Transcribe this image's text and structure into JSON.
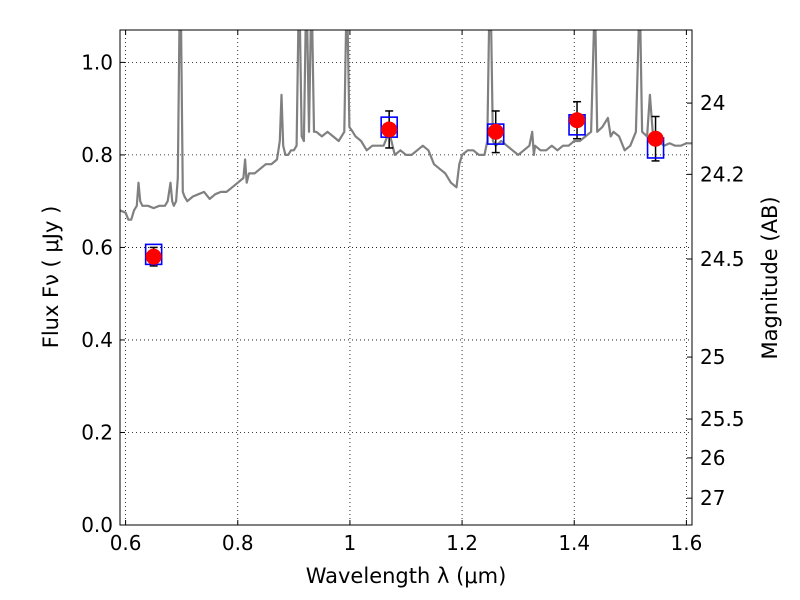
{
  "chart_data": {
    "type": "scatter",
    "xlabel": "Wavelength  λ (μm)",
    "ylabel_left": "Flux  Fν  ( μJy )",
    "ylabel_right": "Magnitude (AB)",
    "xlim": [
      0.59,
      1.61
    ],
    "ylim": [
      0.0,
      1.07
    ],
    "grid": true,
    "xticks": [
      {
        "value": 0.6,
        "label": "0.6"
      },
      {
        "value": 0.8,
        "label": "0.8"
      },
      {
        "value": 1.0,
        "label": "1"
      },
      {
        "value": 1.2,
        "label": "1.2"
      },
      {
        "value": 1.4,
        "label": "1.4"
      },
      {
        "value": 1.6,
        "label": "1.6"
      }
    ],
    "yticks": [
      {
        "value": 0.0,
        "label": "0.0"
      },
      {
        "value": 0.2,
        "label": "0.2"
      },
      {
        "value": 0.4,
        "label": "0.4"
      },
      {
        "value": 0.6,
        "label": "0.6"
      },
      {
        "value": 0.8,
        "label": "0.8"
      },
      {
        "value": 1.0,
        "label": "1.0"
      }
    ],
    "right_ticks": [
      {
        "flux": 0.912,
        "label": "24"
      },
      {
        "flux": 0.758,
        "label": "24.2"
      },
      {
        "flux": 0.575,
        "label": "24.5"
      },
      {
        "flux": 0.363,
        "label": "25"
      },
      {
        "flux": 0.229,
        "label": "25.5"
      },
      {
        "flux": 0.145,
        "label": "26"
      },
      {
        "flux": 0.058,
        "label": "27"
      }
    ],
    "series": [
      {
        "kind": "spectrum-line",
        "color": "#808080",
        "points": [
          [
            0.59,
            0.68
          ],
          [
            0.6,
            0.675
          ],
          [
            0.605,
            0.66
          ],
          [
            0.61,
            0.66
          ],
          [
            0.615,
            0.68
          ],
          [
            0.62,
            0.69
          ],
          [
            0.623,
            0.74
          ],
          [
            0.626,
            0.7
          ],
          [
            0.63,
            0.69
          ],
          [
            0.64,
            0.69
          ],
          [
            0.65,
            0.685
          ],
          [
            0.66,
            0.69
          ],
          [
            0.67,
            0.69
          ],
          [
            0.675,
            0.7
          ],
          [
            0.68,
            0.74
          ],
          [
            0.683,
            0.7
          ],
          [
            0.686,
            0.69
          ],
          [
            0.69,
            0.7
          ],
          [
            0.693,
            0.75
          ],
          [
            0.696,
            1.07
          ],
          [
            0.699,
            1.07
          ],
          [
            0.702,
            0.72
          ],
          [
            0.705,
            0.71
          ],
          [
            0.71,
            0.7
          ],
          [
            0.72,
            0.71
          ],
          [
            0.73,
            0.715
          ],
          [
            0.74,
            0.72
          ],
          [
            0.75,
            0.705
          ],
          [
            0.76,
            0.715
          ],
          [
            0.77,
            0.72
          ],
          [
            0.78,
            0.72
          ],
          [
            0.79,
            0.73
          ],
          [
            0.8,
            0.74
          ],
          [
            0.81,
            0.75
          ],
          [
            0.813,
            0.79
          ],
          [
            0.816,
            0.74
          ],
          [
            0.82,
            0.76
          ],
          [
            0.83,
            0.76
          ],
          [
            0.84,
            0.77
          ],
          [
            0.85,
            0.78
          ],
          [
            0.86,
            0.78
          ],
          [
            0.87,
            0.79
          ],
          [
            0.875,
            0.83
          ],
          [
            0.878,
            0.93
          ],
          [
            0.881,
            0.82
          ],
          [
            0.885,
            0.8
          ],
          [
            0.89,
            0.8
          ],
          [
            0.895,
            0.81
          ],
          [
            0.9,
            0.81
          ],
          [
            0.905,
            0.82
          ],
          [
            0.908,
            1.07
          ],
          [
            0.911,
            1.07
          ],
          [
            0.914,
            0.84
          ],
          [
            0.918,
            0.83
          ],
          [
            0.921,
            1.07
          ],
          [
            0.924,
            1.07
          ],
          [
            0.927,
            0.85
          ],
          [
            0.93,
            1.07
          ],
          [
            0.933,
            1.07
          ],
          [
            0.936,
            0.85
          ],
          [
            0.94,
            0.85
          ],
          [
            0.95,
            0.84
          ],
          [
            0.96,
            0.85
          ],
          [
            0.97,
            0.84
          ],
          [
            0.98,
            0.83
          ],
          [
            0.985,
            0.84
          ],
          [
            0.99,
            0.85
          ],
          [
            0.993,
            1.07
          ],
          [
            0.996,
            1.07
          ],
          [
            0.999,
            0.86
          ],
          [
            1.005,
            0.85
          ],
          [
            1.01,
            0.84
          ],
          [
            1.02,
            0.83
          ],
          [
            1.03,
            0.81
          ],
          [
            1.04,
            0.82
          ],
          [
            1.05,
            0.82
          ],
          [
            1.06,
            0.82
          ],
          [
            1.07,
            0.85
          ],
          [
            1.08,
            0.8
          ],
          [
            1.09,
            0.81
          ],
          [
            1.1,
            0.8
          ],
          [
            1.11,
            0.8
          ],
          [
            1.12,
            0.81
          ],
          [
            1.13,
            0.82
          ],
          [
            1.14,
            0.81
          ],
          [
            1.15,
            0.78
          ],
          [
            1.16,
            0.77
          ],
          [
            1.17,
            0.76
          ],
          [
            1.18,
            0.74
          ],
          [
            1.19,
            0.73
          ],
          [
            1.195,
            0.78
          ],
          [
            1.2,
            0.8
          ],
          [
            1.21,
            0.81
          ],
          [
            1.22,
            0.81
          ],
          [
            1.23,
            0.8
          ],
          [
            1.24,
            0.8
          ],
          [
            1.245,
            0.83
          ],
          [
            1.248,
            1.07
          ],
          [
            1.252,
            1.07
          ],
          [
            1.255,
            0.83
          ],
          [
            1.26,
            0.82
          ],
          [
            1.27,
            0.83
          ],
          [
            1.28,
            0.82
          ],
          [
            1.29,
            0.81
          ],
          [
            1.3,
            0.8
          ],
          [
            1.31,
            0.81
          ],
          [
            1.32,
            0.82
          ],
          [
            1.325,
            0.85
          ],
          [
            1.328,
            0.8
          ],
          [
            1.33,
            0.82
          ],
          [
            1.34,
            0.81
          ],
          [
            1.35,
            0.81
          ],
          [
            1.36,
            0.82
          ],
          [
            1.37,
            0.81
          ],
          [
            1.38,
            0.82
          ],
          [
            1.39,
            0.82
          ],
          [
            1.4,
            0.83
          ],
          [
            1.41,
            0.83
          ],
          [
            1.42,
            0.84
          ],
          [
            1.43,
            0.85
          ],
          [
            1.435,
            1.07
          ],
          [
            1.438,
            1.07
          ],
          [
            1.441,
            0.85
          ],
          [
            1.45,
            0.86
          ],
          [
            1.46,
            0.88
          ],
          [
            1.465,
            0.84
          ],
          [
            1.47,
            0.85
          ],
          [
            1.48,
            0.84
          ],
          [
            1.49,
            0.81
          ],
          [
            1.5,
            0.82
          ],
          [
            1.51,
            0.85
          ],
          [
            1.515,
            1.07
          ],
          [
            1.518,
            1.07
          ],
          [
            1.521,
            0.85
          ],
          [
            1.53,
            0.84
          ],
          [
            1.535,
            0.93
          ],
          [
            1.54,
            0.85
          ],
          [
            1.55,
            0.83
          ],
          [
            1.56,
            0.82
          ],
          [
            1.57,
            0.825
          ],
          [
            1.58,
            0.82
          ],
          [
            1.59,
            0.82
          ],
          [
            1.6,
            0.825
          ],
          [
            1.61,
            0.825
          ]
        ]
      },
      {
        "kind": "model-squares",
        "color": "#0000ff",
        "points": [
          [
            0.65,
            0.585
          ],
          [
            1.07,
            0.86
          ],
          [
            1.26,
            0.845
          ],
          [
            1.405,
            0.865
          ],
          [
            1.545,
            0.815
          ]
        ]
      },
      {
        "kind": "observed-points",
        "color": "#ff0000",
        "points": [
          {
            "x": 0.65,
            "y": 0.58,
            "err": 0.02
          },
          {
            "x": 1.07,
            "y": 0.855,
            "err": 0.04
          },
          {
            "x": 1.26,
            "y": 0.85,
            "err": 0.045
          },
          {
            "x": 1.405,
            "y": 0.875,
            "err": 0.04
          },
          {
            "x": 1.545,
            "y": 0.835,
            "err": 0.048
          }
        ]
      }
    ]
  }
}
